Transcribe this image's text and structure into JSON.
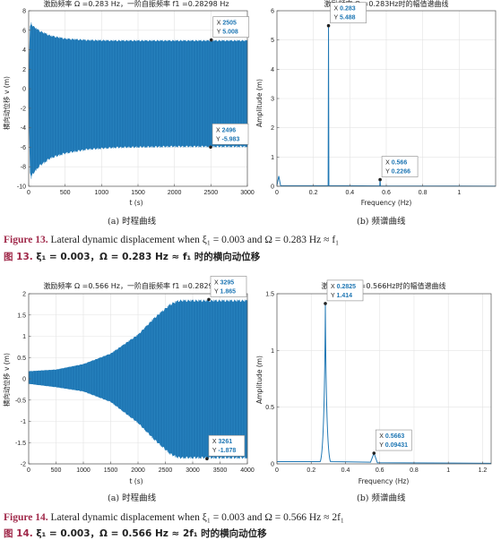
{
  "figures": [
    {
      "caption_en_label": "Figure 13.",
      "caption_en_text": " Lateral dynamic displacement when ξ₁ = 0.003 and Ω = 0.283 Hz ≈ f₁",
      "caption_cn_label": "图 13.",
      "caption_cn_text": " ξ₁ = 0.003，Ω = 0.283 Hz ≈ f₁ 时的横向动位移",
      "sub_a": "(a) 时程曲线",
      "sub_b": "(b) 频谱曲线",
      "time_title": "激励频率 Ω =0.283 Hz，一阶自振频率 f1 =0.28298 Hz",
      "freq_title": "激励频率 Ω =0.283Hz时的幅值谱曲线",
      "time_xlabel": "t (s)",
      "time_ylabel": "横向动位移 v (m)",
      "freq_xlabel": "Frequency (Hz)",
      "freq_ylabel": "Amplitude (m)",
      "tips": [
        {
          "x": "X 2505",
          "y": "Y 5.008"
        },
        {
          "x": "X 2496",
          "y": "Y -5.983"
        },
        {
          "x": "X 0.283",
          "y": "Y 5.488"
        },
        {
          "x": "X 0.566",
          "y": "Y 0.2266"
        }
      ]
    },
    {
      "caption_en_label": "Figure 14.",
      "caption_en_text": " Lateral dynamic displacement when ξ₁ = 0.003 and Ω = 0.566 Hz ≈ 2f₁",
      "caption_cn_label": "图 14.",
      "caption_cn_text": " ξ₁ = 0.003，Ω = 0.566 Hz ≈ 2f₁ 时的横向动位移",
      "sub_a": "(a) 时程曲线",
      "sub_b": "(b) 频谱曲线",
      "time_title": "激励频率 Ω =0.566 Hz，一阶自振频率 f1 =0.28298 Hz",
      "freq_title": "激励频率 Ω =0.566Hz时的幅值谱曲线",
      "time_xlabel": "t (s)",
      "time_ylabel": "横向动位移 v (m)",
      "freq_xlabel": "Frequency (Hz)",
      "freq_ylabel": "Amplitude (m)",
      "tips": [
        {
          "x": "X 3295",
          "y": "Y 1.865"
        },
        {
          "x": "X 3261",
          "y": "Y -1.878"
        },
        {
          "x": "X 0.2825",
          "y": "Y 1.414"
        },
        {
          "x": "X 0.5663",
          "y": "Y 0.09431"
        }
      ]
    }
  ],
  "colors": {
    "signal": "#1f77b4",
    "tip_value": "#1f77b4",
    "fig_num": "#a0294a"
  },
  "chart_data": [
    {
      "type": "area",
      "xlim": [
        0,
        3000
      ],
      "ylim": [
        -10,
        8
      ],
      "xticks": [
        0,
        500,
        1000,
        1500,
        2000,
        2500,
        3000
      ],
      "yticks": [
        -10,
        -8,
        -6,
        -4,
        -2,
        0,
        2,
        4,
        6,
        8
      ],
      "envelope": {
        "t": [
          0,
          20,
          60,
          150,
          300,
          500,
          800,
          1200,
          2000,
          3000
        ],
        "upper": [
          2.0,
          7.0,
          6.5,
          6.0,
          5.5,
          5.2,
          5.05,
          5.0,
          5.0,
          5.0
        ],
        "lower": [
          -2.0,
          -9.5,
          -8.8,
          -8.0,
          -7.2,
          -6.7,
          -6.3,
          -6.1,
          -6.0,
          -6.0
        ]
      },
      "grid": true,
      "datatips": [
        {
          "x": 2505,
          "y": 5.008
        },
        {
          "x": 2496,
          "y": -5.983
        }
      ]
    },
    {
      "type": "line",
      "xlim": [
        0,
        1.2
      ],
      "ylim": [
        0,
        6
      ],
      "xticks": [
        0,
        0.2,
        0.4,
        0.6,
        0.8,
        1
      ],
      "yticks": [
        0,
        1,
        2,
        3,
        4,
        5,
        6
      ],
      "x": [
        0,
        0.283,
        0.566,
        1.2
      ],
      "y": [
        0,
        5.488,
        0.2266,
        0
      ],
      "grid": true,
      "datatips": [
        {
          "x": 0.283,
          "y": 5.488
        },
        {
          "x": 0.566,
          "y": 0.2266
        }
      ]
    },
    {
      "type": "area",
      "xlim": [
        0,
        4000
      ],
      "ylim": [
        -2,
        2
      ],
      "xticks": [
        0,
        500,
        1000,
        1500,
        2000,
        2500,
        3000,
        3500,
        4000
      ],
      "yticks": [
        -2,
        -1.5,
        -1,
        -0.5,
        0,
        0.5,
        1,
        1.5,
        2
      ],
      "envelope": {
        "t": [
          0,
          500,
          1000,
          1500,
          2000,
          2300,
          2600,
          2750,
          3000,
          4000
        ],
        "upper": [
          0.18,
          0.22,
          0.35,
          0.6,
          1.05,
          1.45,
          1.78,
          1.86,
          1.86,
          1.86
        ],
        "lower": [
          -0.12,
          -0.2,
          -0.3,
          -0.55,
          -1.05,
          -1.45,
          -1.8,
          -1.88,
          -1.88,
          -1.88
        ]
      },
      "grid": true,
      "datatips": [
        {
          "x": 3295,
          "y": 1.865
        },
        {
          "x": 3261,
          "y": -1.878
        }
      ]
    },
    {
      "type": "line",
      "xlim": [
        0,
        1.25
      ],
      "ylim": [
        0,
        1.5
      ],
      "xticks": [
        0,
        0.2,
        0.4,
        0.6,
        0.8,
        1,
        1.2
      ],
      "yticks": [
        0,
        0.5,
        1,
        1.5
      ],
      "x": [
        0,
        0.2825,
        0.5663,
        1.25
      ],
      "y": [
        0,
        1.414,
        0.09431,
        0
      ],
      "grid": true,
      "datatips": [
        {
          "x": 0.2825,
          "y": 1.414
        },
        {
          "x": 0.5663,
          "y": 0.09431
        }
      ]
    }
  ]
}
